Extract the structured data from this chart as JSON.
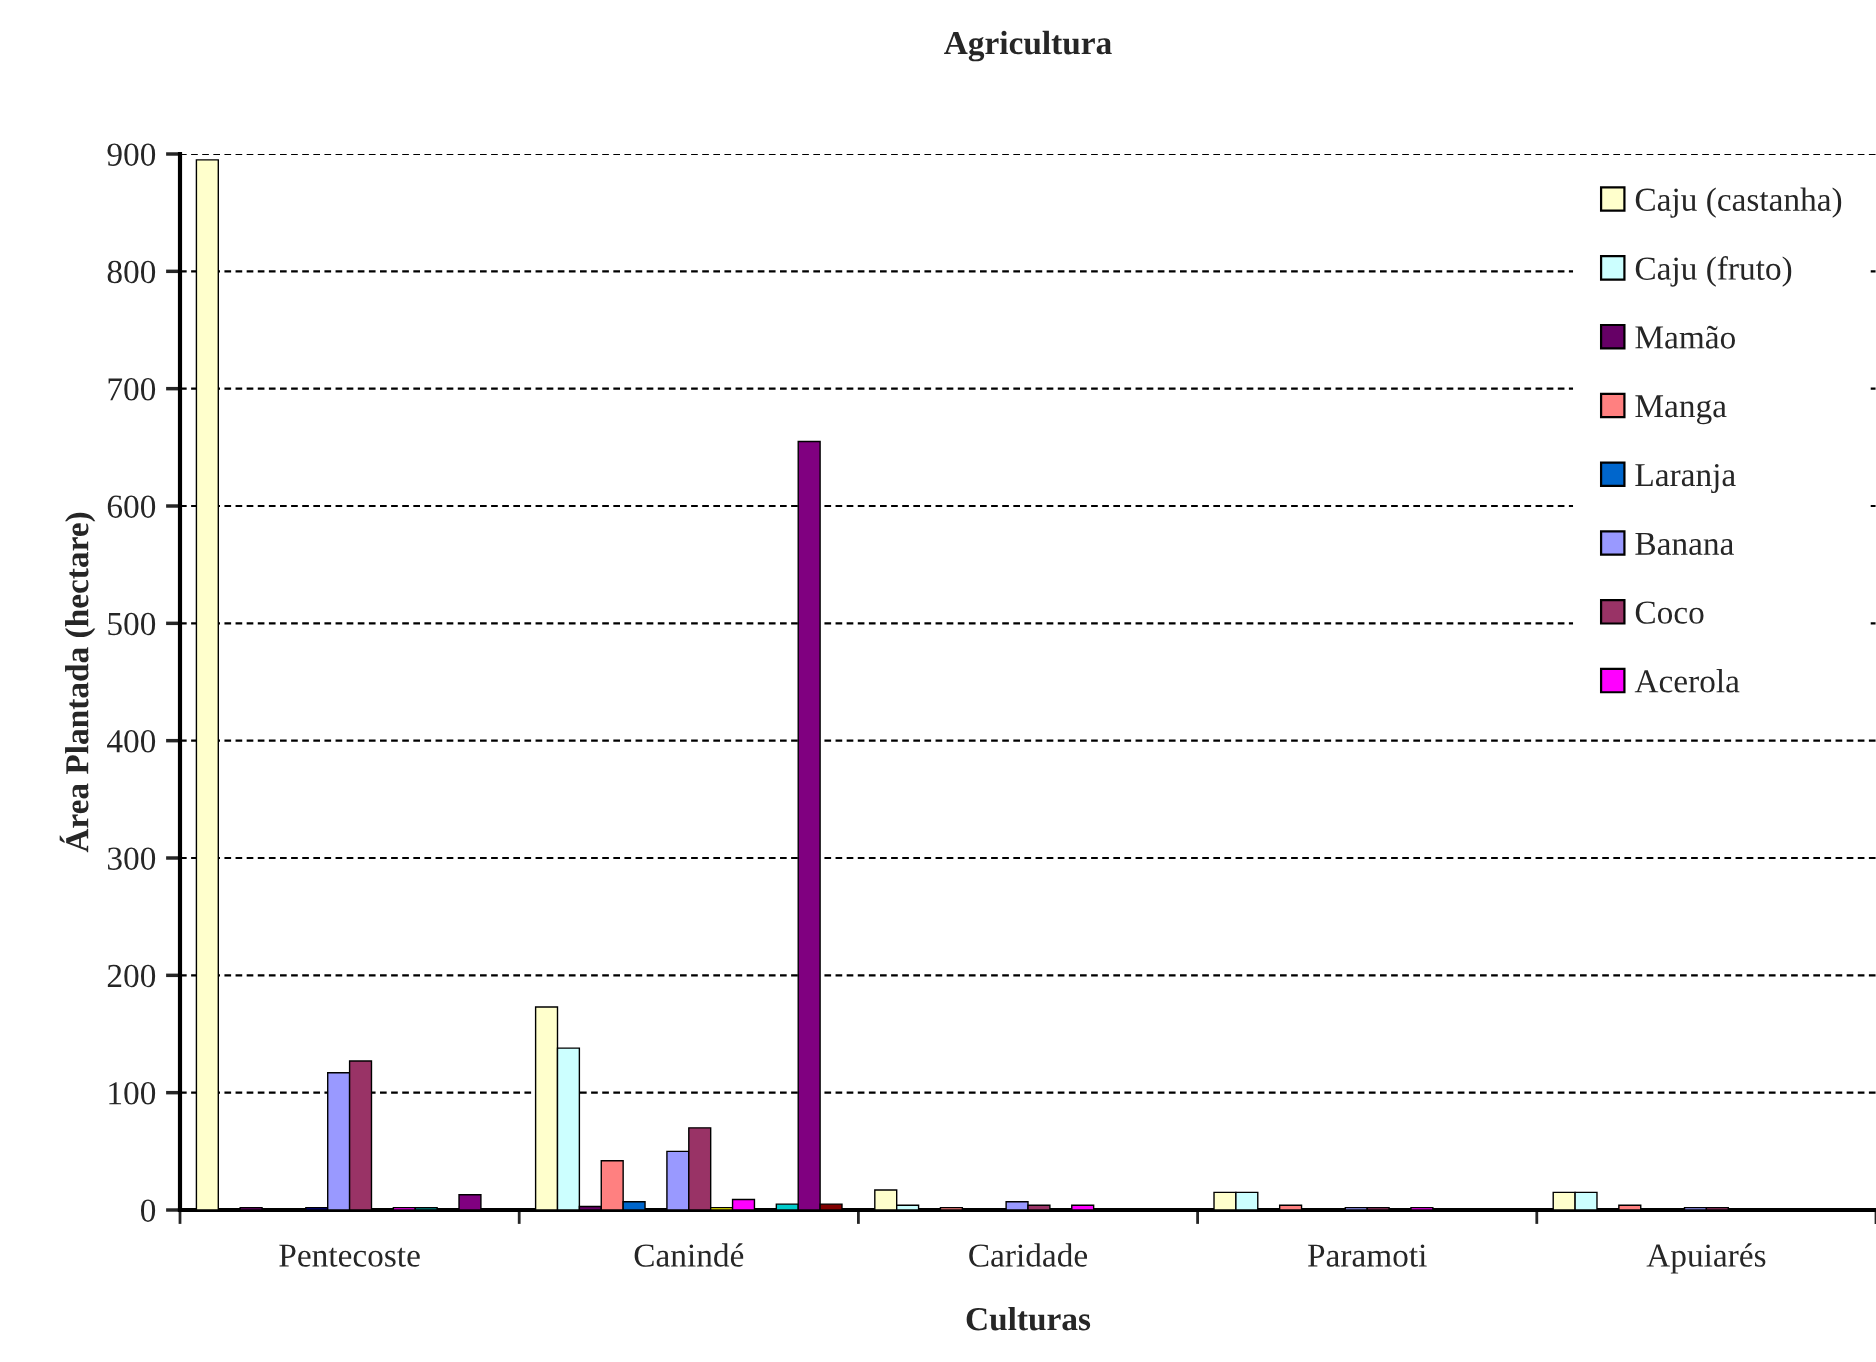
{
  "chart_data": {
    "type": "bar",
    "title": "Agricultura",
    "xlabel": "Culturas",
    "ylabel": "Área Plantada (hectare)",
    "categories": [
      "Pentecoste",
      "Canindé",
      "Caridade",
      "Paramoti",
      "Apuiarés"
    ],
    "series": [
      {
        "name": "Caju (castanha)",
        "color": "#ffffcc",
        "values": [
          895,
          173,
          17,
          15,
          15
        ]
      },
      {
        "name": "Caju (fruto)",
        "color": "#ccffff",
        "values": [
          null,
          138,
          4,
          15,
          15
        ]
      },
      {
        "name": "Mamão",
        "color": "#660066",
        "values": [
          2,
          3,
          null,
          null,
          null
        ]
      },
      {
        "name": "Manga",
        "color": "#ff8080",
        "values": [
          null,
          42,
          2,
          4,
          4
        ]
      },
      {
        "name": "Laranja",
        "color": "#0066cc",
        "values": [
          null,
          7,
          null,
          null,
          null
        ]
      },
      {
        "color": "#000080",
        "values": [
          2,
          null,
          null,
          null,
          null
        ]
      },
      {
        "name": "Banana",
        "color": "#9999ff",
        "values": [
          117,
          50,
          7,
          2,
          2
        ]
      },
      {
        "name": "Coco",
        "color": "#993366",
        "values": [
          127,
          70,
          4,
          2,
          2
        ]
      },
      {
        "color": "#ffff00",
        "values": [
          null,
          2,
          null,
          null,
          null
        ]
      },
      {
        "name": "Acerola",
        "color": "#ff00ff",
        "values": [
          2,
          9,
          4,
          2,
          null
        ]
      },
      {
        "color": "#008080",
        "values": [
          2,
          null,
          null,
          null,
          null
        ]
      },
      {
        "color": "#00cccc",
        "values": [
          null,
          5,
          null,
          null,
          null
        ]
      },
      {
        "color": "#800080",
        "values": [
          13,
          655,
          null,
          null,
          null
        ]
      },
      {
        "color": "#800000",
        "values": [
          null,
          5,
          null,
          null,
          null
        ]
      }
    ],
    "ylim": [
      0,
      900
    ],
    "yticks": [
      0,
      100,
      200,
      300,
      400,
      500,
      600,
      700,
      800,
      900
    ],
    "grid": "y",
    "legend": "top right"
  }
}
